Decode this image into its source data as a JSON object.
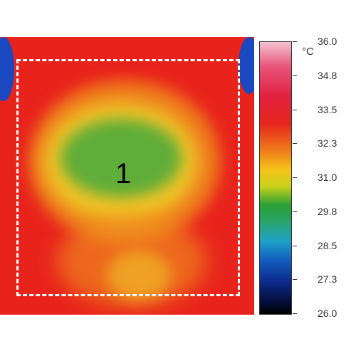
{
  "roi": {
    "label": "1"
  },
  "scale": {
    "unit": "°C",
    "ticks": [
      "36.0",
      "34.8",
      "33.5",
      "32.3",
      "31.0",
      "29.8",
      "28.5",
      "27.3",
      "26.0"
    ]
  }
}
